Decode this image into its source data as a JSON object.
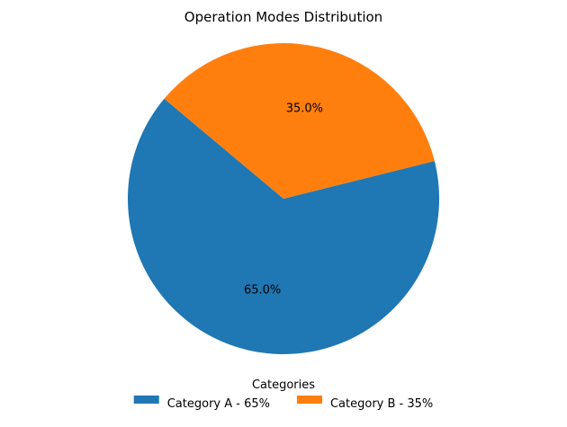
{
  "chart_data": {
    "type": "pie",
    "title": "Operation Modes Distribution",
    "slices": [
      {
        "label": "Category A - 65%",
        "value": 65.0,
        "pct_label": "65.0%",
        "color": "#1f77b4"
      },
      {
        "label": "Category B - 35%",
        "value": 35.0,
        "pct_label": "35.0%",
        "color": "#ff7f0e"
      }
    ],
    "start_angle_deg": 140,
    "direction": "counterclockwise",
    "legend": {
      "title": "Categories",
      "placement": "bottom-center",
      "columns": 2
    }
  }
}
